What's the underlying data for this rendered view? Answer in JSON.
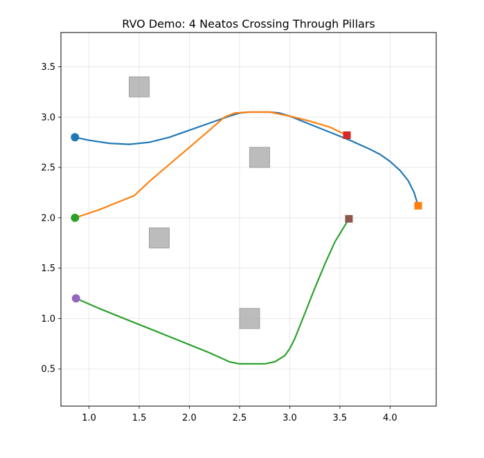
{
  "chart_data": {
    "type": "line",
    "title": "RVO Demo: 4 Neatos Crossing Through Pillars",
    "xlabel": "",
    "ylabel": "",
    "xlim": [
      0.72,
      4.46
    ],
    "ylim": [
      0.13,
      3.84
    ],
    "grid": true,
    "x_ticks": [
      1.0,
      1.5,
      2.0,
      2.5,
      3.0,
      3.5,
      4.0
    ],
    "y_ticks": [
      0.5,
      1.0,
      1.5,
      2.0,
      2.5,
      3.0,
      3.5
    ],
    "x_tick_labels": [
      "1.0",
      "1.5",
      "2.0",
      "2.5",
      "3.0",
      "3.5",
      "4.0"
    ],
    "y_tick_labels": [
      "0.5",
      "1.0",
      "1.5",
      "2.0",
      "2.5",
      "3.0",
      "3.5"
    ],
    "pillars": [
      {
        "cx": 1.5,
        "cy": 3.3,
        "size": 0.2
      },
      {
        "cx": 2.7,
        "cy": 2.6,
        "size": 0.2
      },
      {
        "cx": 1.7,
        "cy": 1.8,
        "size": 0.2
      },
      {
        "cx": 2.6,
        "cy": 1.0,
        "size": 0.2
      }
    ],
    "pillar_color": "#a0a0a0",
    "series": [
      {
        "color": "#1f77b4",
        "start": [
          0.86,
          2.8
        ],
        "goal": [
          4.28,
          2.12
        ],
        "start_color": "#1f77b4",
        "goal_color": "#ff7f0e",
        "path": [
          [
            0.86,
            2.8
          ],
          [
            1.0,
            2.77
          ],
          [
            1.2,
            2.74
          ],
          [
            1.4,
            2.73
          ],
          [
            1.6,
            2.75
          ],
          [
            1.8,
            2.8
          ],
          [
            2.0,
            2.87
          ],
          [
            2.2,
            2.94
          ],
          [
            2.4,
            3.01
          ],
          [
            2.5,
            3.04
          ],
          [
            2.6,
            3.05
          ],
          [
            2.8,
            3.05
          ],
          [
            2.9,
            3.04
          ],
          [
            3.0,
            3.01
          ],
          [
            3.2,
            2.93
          ],
          [
            3.4,
            2.85
          ],
          [
            3.6,
            2.77
          ],
          [
            3.8,
            2.68
          ],
          [
            3.9,
            2.63
          ],
          [
            4.0,
            2.56
          ],
          [
            4.1,
            2.47
          ],
          [
            4.18,
            2.37
          ],
          [
            4.24,
            2.25
          ],
          [
            4.28,
            2.12
          ]
        ]
      },
      {
        "color": "#ff7f0e",
        "start": [
          0.86,
          2.0
        ],
        "goal": [
          3.57,
          2.82
        ],
        "start_color": "#2ca02c",
        "goal_color": "#d62728",
        "path": [
          [
            0.86,
            2.0
          ],
          [
            1.1,
            2.08
          ],
          [
            1.3,
            2.16
          ],
          [
            1.45,
            2.22
          ],
          [
            1.6,
            2.36
          ],
          [
            1.8,
            2.53
          ],
          [
            2.0,
            2.7
          ],
          [
            2.2,
            2.87
          ],
          [
            2.35,
            3.0
          ],
          [
            2.45,
            3.04
          ],
          [
            2.6,
            3.05
          ],
          [
            2.8,
            3.05
          ],
          [
            2.9,
            3.03
          ],
          [
            3.0,
            3.01
          ],
          [
            3.2,
            2.96
          ],
          [
            3.4,
            2.9
          ],
          [
            3.57,
            2.82
          ]
        ]
      },
      {
        "color": "#2ca02c",
        "start": [
          0.87,
          1.2
        ],
        "goal": [
          3.59,
          1.99
        ],
        "start_color": "#9467bd",
        "goal_color": "#8c564b",
        "path": [
          [
            0.87,
            1.2
          ],
          [
            1.1,
            1.1
          ],
          [
            1.4,
            0.98
          ],
          [
            1.7,
            0.86
          ],
          [
            2.0,
            0.74
          ],
          [
            2.2,
            0.66
          ],
          [
            2.4,
            0.57
          ],
          [
            2.5,
            0.55
          ],
          [
            2.6,
            0.55
          ],
          [
            2.75,
            0.55
          ],
          [
            2.85,
            0.57
          ],
          [
            2.95,
            0.63
          ],
          [
            3.0,
            0.7
          ],
          [
            3.05,
            0.8
          ],
          [
            3.15,
            1.05
          ],
          [
            3.25,
            1.3
          ],
          [
            3.35,
            1.54
          ],
          [
            3.45,
            1.76
          ],
          [
            3.59,
            1.99
          ]
        ]
      }
    ]
  }
}
